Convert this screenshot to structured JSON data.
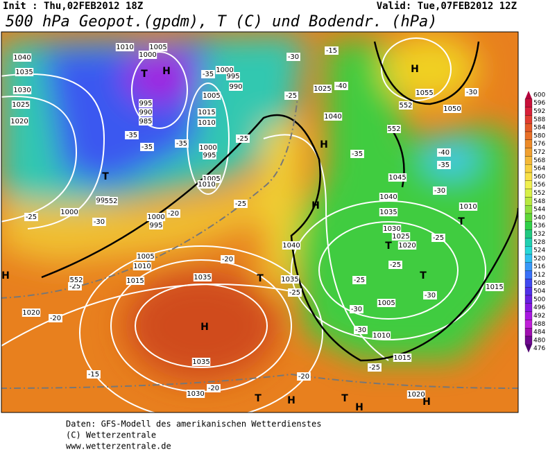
{
  "header": {
    "init": "Init : Thu,02FEB2012 18Z",
    "valid": "Valid: Tue,07FEB2012 12Z",
    "title": "500 hPa Geopot.(gpdm), T (C) und Bodendr. (hPa)"
  },
  "colorbar": {
    "values": [
      600,
      596,
      592,
      588,
      584,
      580,
      576,
      572,
      568,
      564,
      560,
      556,
      552,
      548,
      544,
      540,
      536,
      532,
      528,
      524,
      520,
      516,
      512,
      508,
      504,
      500,
      496,
      492,
      488,
      484,
      480,
      476
    ],
    "colors": [
      "#b4003c",
      "#c8103a",
      "#d8203a",
      "#e03c30",
      "#e45a28",
      "#e87028",
      "#ec8a28",
      "#f0a030",
      "#f4b838",
      "#f8d040",
      "#f8e048",
      "#f0f050",
      "#d8f048",
      "#b8e840",
      "#90e040",
      "#60d838",
      "#30d048",
      "#20c880",
      "#20d0b0",
      "#28d8d8",
      "#30c0f0",
      "#3898f8",
      "#3870f8",
      "#4048f0",
      "#5030e8",
      "#6820e0",
      "#8818e0",
      "#a818e0",
      "#c020d8",
      "#a010b0",
      "#700890",
      "#500070"
    ]
  },
  "map_labels": [
    "H",
    "1035",
    "1035",
    "T",
    "H",
    "1055",
    "1050",
    "H",
    "T",
    "T",
    "H",
    "1040",
    "1035",
    "1030",
    "1025",
    "1020",
    "1010",
    "1005",
    "1000",
    "995",
    "990",
    "985",
    "1000",
    "995",
    "990",
    "1005",
    "1015",
    "1010",
    "1000",
    "995",
    "1005",
    "1010",
    "1000",
    "995",
    "1000",
    "995",
    "1005",
    "1010",
    "1015",
    "1020",
    "1025",
    "1040",
    "1045",
    "1040",
    "1035",
    "1030",
    "1025",
    "1020",
    "1040",
    "1035",
    "1005",
    "1010",
    "1015",
    "1020",
    "1030",
    "1010",
    "1015",
    "T",
    "T",
    "T",
    "H",
    "H",
    "T",
    "H",
    "T",
    "H",
    "H",
    "-25",
    "-30",
    "-20",
    "-25",
    "-20",
    "-25",
    "-20",
    "-15",
    "-20",
    "-25",
    "-30",
    "-25",
    "-30",
    "-20",
    "-25",
    "-30",
    "-25",
    "-25",
    "-30",
    "-35",
    "-40",
    "-35",
    "-30",
    "-40",
    "-25",
    "-30",
    "-15",
    "-35",
    "-25",
    "-35",
    "-35",
    "-35",
    "552",
    "552",
    "552",
    "552"
  ],
  "footer": [
    "Daten: GFS-Modell des amerikanischen Wetterdienstes",
    "(C) Wetterzentrale",
    "www.wetterzentrale.de"
  ]
}
